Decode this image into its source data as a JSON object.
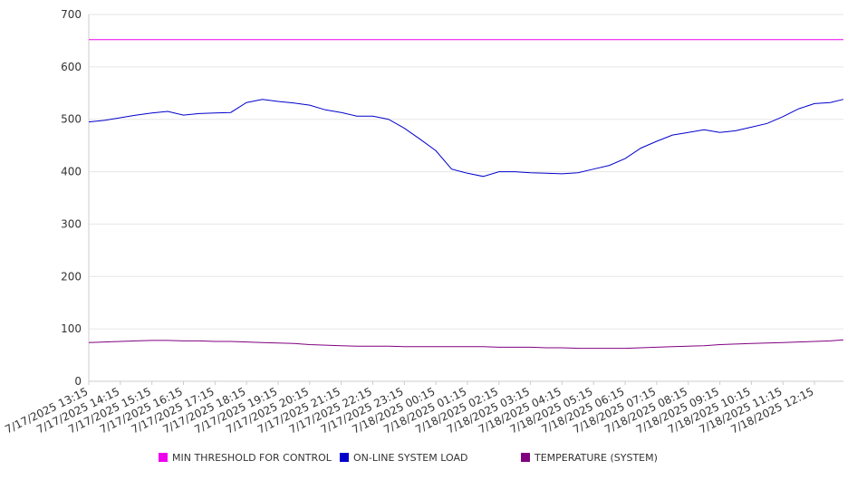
{
  "chart_data": {
    "type": "line",
    "title": "",
    "xlabel": "",
    "ylabel": "",
    "ylim": [
      0,
      700
    ],
    "yticks": [
      0,
      100,
      200,
      300,
      400,
      500,
      600,
      700
    ],
    "grid": true,
    "legend_position": "bottom",
    "x_tick_labels": [
      "7/17/2025 13:15",
      "7/17/2025 14:15",
      "7/17/2025 15:15",
      "7/17/2025 16:15",
      "7/17/2025 17:15",
      "7/17/2025 18:15",
      "7/17/2025 19:15",
      "7/17/2025 20:15",
      "7/17/2025 21:15",
      "7/17/2025 22:15",
      "7/17/2025 23:15",
      "7/18/2025 00:15",
      "7/18/2025 01:15",
      "7/18/2025 02:15",
      "7/18/2025 03:15",
      "7/18/2025 04:15",
      "7/18/2025 05:15",
      "7/18/2025 06:15",
      "7/18/2025 07:15",
      "7/18/2025 08:15",
      "7/18/2025 09:15",
      "7/18/2025 10:15",
      "7/18/2025 11:15",
      "7/18/2025 12:15"
    ],
    "x": [
      "7/17/2025 13:15",
      "7/17/2025 13:45",
      "7/17/2025 14:15",
      "7/17/2025 14:45",
      "7/17/2025 15:15",
      "7/17/2025 15:45",
      "7/17/2025 16:15",
      "7/17/2025 16:45",
      "7/17/2025 17:15",
      "7/17/2025 17:45",
      "7/17/2025 18:15",
      "7/17/2025 18:45",
      "7/17/2025 19:15",
      "7/17/2025 19:45",
      "7/17/2025 20:15",
      "7/17/2025 20:45",
      "7/17/2025 21:15",
      "7/17/2025 21:45",
      "7/17/2025 22:15",
      "7/17/2025 22:45",
      "7/17/2025 23:15",
      "7/17/2025 23:45",
      "7/18/2025 00:15",
      "7/18/2025 00:45",
      "7/18/2025 01:15",
      "7/18/2025 01:45",
      "7/18/2025 02:15",
      "7/18/2025 02:45",
      "7/18/2025 03:15",
      "7/18/2025 03:45",
      "7/18/2025 04:15",
      "7/18/2025 04:45",
      "7/18/2025 05:15",
      "7/18/2025 05:45",
      "7/18/2025 06:15",
      "7/18/2025 06:45",
      "7/18/2025 07:15",
      "7/18/2025 07:45",
      "7/18/2025 08:15",
      "7/18/2025 08:45",
      "7/18/2025 09:15",
      "7/18/2025 09:45",
      "7/18/2025 10:15",
      "7/18/2025 10:45",
      "7/18/2025 11:15",
      "7/18/2025 11:45",
      "7/18/2025 12:15",
      "7/18/2025 12:45",
      "7/18/2025 13:10"
    ],
    "series": [
      {
        "name": "MIN THRESHOLD FOR CONTROL",
        "color": "#ee00ee",
        "values": [
          652,
          652,
          652,
          652,
          652,
          652,
          652,
          652,
          652,
          652,
          652,
          652,
          652,
          652,
          652,
          652,
          652,
          652,
          652,
          652,
          652,
          652,
          652,
          652,
          652,
          652,
          652,
          652,
          652,
          652,
          652,
          652,
          652,
          652,
          652,
          652,
          652,
          652,
          652,
          652,
          652,
          652,
          652,
          652,
          652,
          652,
          652,
          652,
          652
        ]
      },
      {
        "name": "ON-LINE SYSTEM LOAD",
        "color": "#0000cc",
        "values": [
          495,
          498,
          503,
          508,
          512,
          515,
          508,
          511,
          512,
          513,
          532,
          538,
          534,
          531,
          527,
          518,
          513,
          506,
          506,
          500,
          483,
          462,
          440,
          405,
          397,
          391,
          400,
          400,
          398,
          397,
          396,
          398,
          405,
          412,
          425,
          445,
          458,
          470,
          475,
          480,
          475,
          478,
          485,
          492,
          505,
          520,
          530,
          532,
          538
        ]
      },
      {
        "name": "TEMPERATURE (SYSTEM)",
        "color": "#800080",
        "values": [
          74,
          75,
          76,
          77,
          78,
          78,
          77,
          77,
          76,
          76,
          75,
          74,
          73,
          72,
          70,
          69,
          68,
          67,
          67,
          67,
          66,
          66,
          66,
          66,
          66,
          66,
          65,
          65,
          65,
          64,
          64,
          63,
          63,
          63,
          63,
          64,
          65,
          66,
          67,
          68,
          70,
          71,
          72,
          73,
          74,
          75,
          76,
          77,
          79
        ]
      }
    ]
  }
}
